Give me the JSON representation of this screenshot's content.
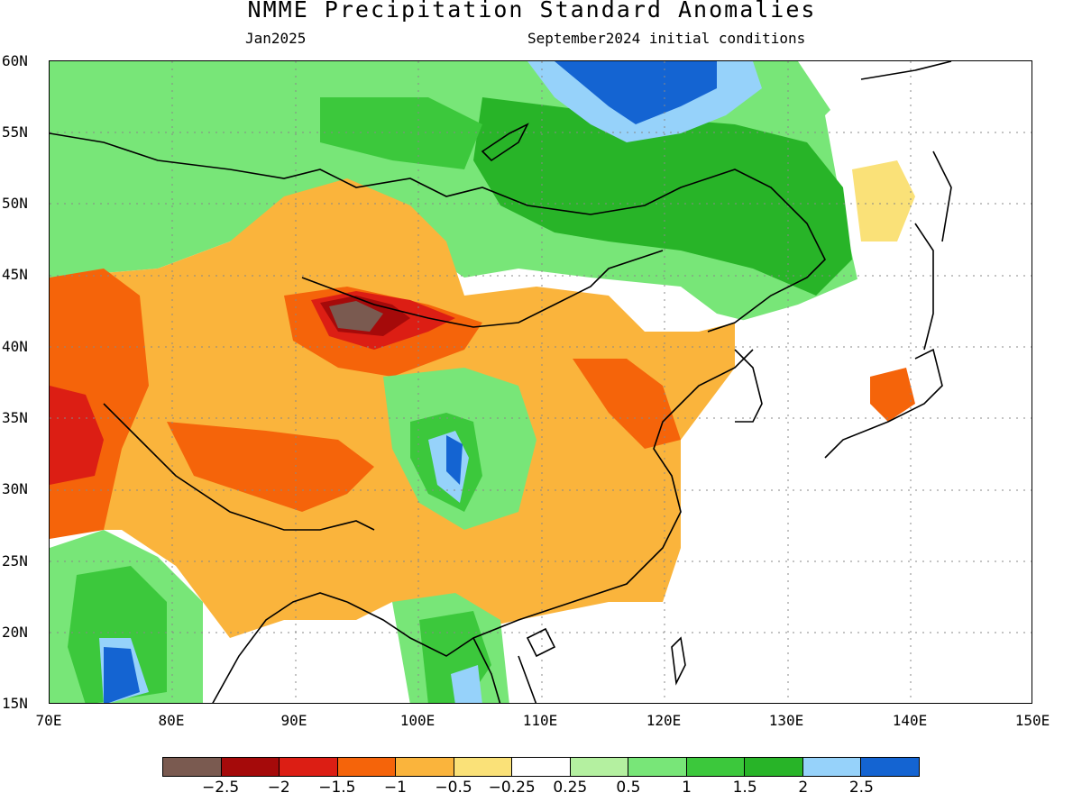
{
  "header": {
    "title": "NMME Precipitation Standard Anomalies",
    "valid_month": "Jan2025",
    "init_label": "September2024 initial conditions"
  },
  "map": {
    "lat_labels": [
      "60N",
      "55N",
      "50N",
      "45N",
      "40N",
      "35N",
      "30N",
      "25N",
      "20N",
      "15N"
    ],
    "lon_labels": [
      "70E",
      "80E",
      "90E",
      "100E",
      "110E",
      "120E",
      "130E",
      "140E",
      "150E"
    ],
    "lat_range": [
      15,
      60
    ],
    "lon_range": [
      70,
      150
    ],
    "gridlines": "dotted"
  },
  "colorbar": {
    "colors": [
      "#7a5a50",
      "#a50a0a",
      "#dc1e14",
      "#f5640a",
      "#fab43c",
      "#fae178",
      "#ffffff",
      "#b4f0a0",
      "#78e678",
      "#3cc83c",
      "#28b428",
      "#96d2fa",
      "#1464d2"
    ],
    "labels": [
      "−2.5",
      "−2",
      "−1.5",
      "−1",
      "−0.5",
      "−0.25",
      "0.25",
      "0.5",
      "1",
      "1.5",
      "2",
      "2.5"
    ]
  }
}
